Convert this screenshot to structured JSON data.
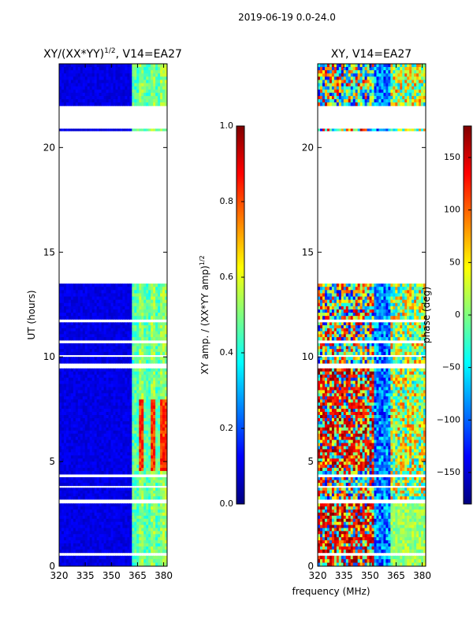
{
  "suptitle": "2019-06-19 0.0-24.0",
  "xlabel": "frequency (MHz)",
  "colors": {
    "jet": [
      "#00007f",
      "#0000ff",
      "#007fff",
      "#00ffff",
      "#7fff7f",
      "#ffff00",
      "#ff7f00",
      "#ff0000",
      "#7f0000"
    ],
    "bg": "#ffffff"
  },
  "chart_data": [
    {
      "type": "heatmap",
      "title_main": "XY/(XX*YY)",
      "title_sup": "1/2",
      "title_rest": ", V14=EA27",
      "ylabel": "UT (hours)",
      "xlim": [
        320,
        382
      ],
      "ylim": [
        0,
        24
      ],
      "xticks": [
        "320",
        "335",
        "350",
        "365",
        "380"
      ],
      "xtick_values": [
        320,
        335,
        350,
        365,
        380
      ],
      "yticks": [
        "0",
        "5",
        "10",
        "15",
        "20"
      ],
      "ytick_values": [
        0,
        5,
        10,
        15,
        20
      ],
      "colorbar": {
        "label": "XY amp. / (XX*YY amp)",
        "label_sup": "1/2",
        "range": [
          0.0,
          1.0
        ],
        "ticks": [
          "0.0",
          "0.2",
          "0.4",
          "0.6",
          "0.8",
          "1.0"
        ],
        "tick_values": [
          0.0,
          0.2,
          0.4,
          0.6,
          0.8,
          1.0
        ]
      },
      "data_blocks_hours": [
        [
          0.0,
          0.5
        ],
        [
          0.65,
          3.0
        ],
        [
          3.2,
          3.75
        ],
        [
          3.85,
          4.25
        ],
        [
          4.4,
          9.45
        ],
        [
          9.7,
          10.0
        ],
        [
          10.1,
          10.65
        ],
        [
          10.8,
          11.65
        ],
        [
          11.8,
          13.5
        ],
        [
          20.8,
          20.9
        ],
        [
          22.0,
          24.0
        ]
      ]
    },
    {
      "type": "heatmap",
      "title": "XY, V14=EA27",
      "xlim": [
        320,
        382
      ],
      "ylim": [
        0,
        24
      ],
      "xticks": [
        "320",
        "335",
        "350",
        "365",
        "380"
      ],
      "xtick_values": [
        320,
        335,
        350,
        365,
        380
      ],
      "yticks": [
        "0",
        "5",
        "10",
        "15",
        "20"
      ],
      "ytick_values": [
        0,
        5,
        10,
        15,
        20
      ],
      "colorbar": {
        "label": "phase (deg)",
        "range": [
          -180,
          180
        ],
        "ticks": [
          "−150",
          "−100",
          "−50",
          "0",
          "50",
          "100",
          "150"
        ],
        "tick_values": [
          -150,
          -100,
          -50,
          0,
          50,
          100,
          150
        ]
      },
      "data_blocks_hours": [
        [
          0.0,
          0.5
        ],
        [
          0.65,
          3.0
        ],
        [
          3.2,
          3.75
        ],
        [
          3.85,
          4.25
        ],
        [
          4.4,
          9.45
        ],
        [
          9.7,
          10.0
        ],
        [
          10.1,
          10.65
        ],
        [
          10.8,
          11.65
        ],
        [
          11.8,
          13.5
        ],
        [
          20.8,
          20.9
        ],
        [
          22.0,
          24.0
        ]
      ]
    }
  ]
}
